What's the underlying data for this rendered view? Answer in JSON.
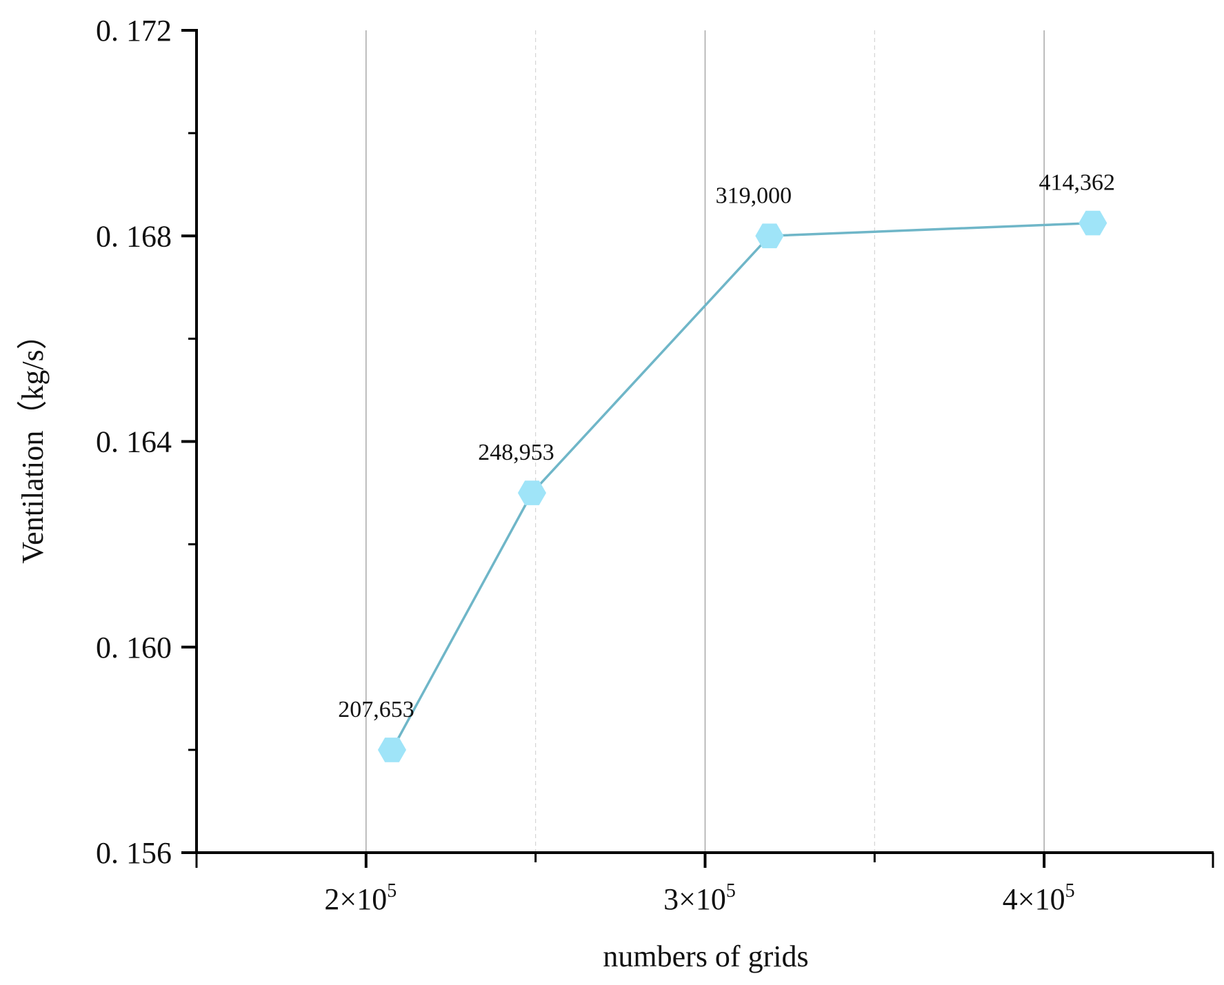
{
  "chart_data": {
    "type": "line",
    "title": "",
    "xlabel": "numbers of grids",
    "ylabel": "Ventilation（kg/s）",
    "xlim": [
      150000,
      450000
    ],
    "ylim": [
      0.156,
      0.172
    ],
    "x_ticks": [
      {
        "value": 200000,
        "base": "2×10",
        "exp": "5"
      },
      {
        "value": 300000,
        "base": "3×10",
        "exp": "5"
      },
      {
        "value": 400000,
        "base": "4×10",
        "exp": "5"
      }
    ],
    "x_minor_ticks": [
      250000,
      350000
    ],
    "y_ticks": [
      {
        "value": 0.156,
        "label": "0. 156"
      },
      {
        "value": 0.16,
        "label": "0. 160"
      },
      {
        "value": 0.164,
        "label": "0. 164"
      },
      {
        "value": 0.168,
        "label": "0. 168"
      },
      {
        "value": 0.172,
        "label": "0. 172"
      }
    ],
    "y_minor_ticks": [
      0.158,
      0.162,
      0.166,
      0.17
    ],
    "grid": {
      "x_major": true,
      "x_minor": true,
      "y": false
    },
    "series": [
      {
        "x": [
          207653,
          248953,
          319000,
          414362
        ],
        "y": [
          0.158,
          0.163,
          0.168,
          0.16825
        ],
        "labels": [
          "207,653",
          "248,953",
          "319,000",
          "414,362"
        ],
        "line_color": "#6fb6c8",
        "marker": "hexagon",
        "marker_color": "#9fe4f8"
      }
    ]
  }
}
